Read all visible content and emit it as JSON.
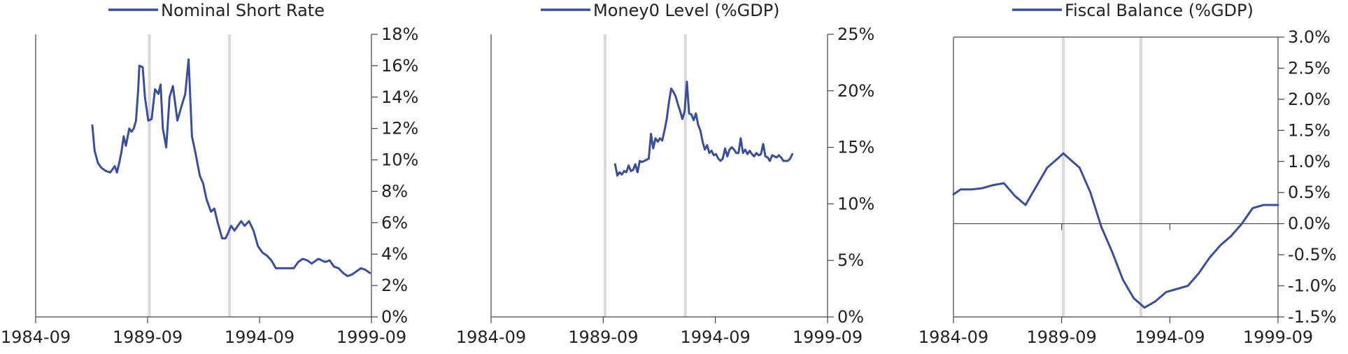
{
  "colors": {
    "line": "#3a4f9c",
    "axis": "#444444",
    "recession": "#d9d9d9"
  },
  "chart_data": [
    {
      "type": "line",
      "title": "",
      "legend": "Nominal Short Rate",
      "legend_placement": "top-center",
      "y_axis_side": "right",
      "xlabel": "",
      "ylabel": "",
      "x_ticks": [
        "1984-09",
        "1989-09",
        "1994-09",
        "1999-09"
      ],
      "x_range": [
        1984.67,
        1999.67
      ],
      "y_ticks": [
        "18%",
        "16%",
        "14%",
        "12%",
        "10%",
        "8%",
        "6%",
        "4%",
        "2%",
        "0%"
      ],
      "ylim": [
        0,
        18
      ],
      "grid": false,
      "recession_shading": [
        1989.75,
        1993.33
      ],
      "series": [
        {
          "x": [
            1987.2,
            1987.3,
            1987.45,
            1987.6,
            1987.8,
            1988.0,
            1988.2,
            1988.3,
            1988.4,
            1988.5,
            1988.6,
            1988.7,
            1988.85,
            1988.95,
            1989.05,
            1989.15,
            1989.25,
            1989.3,
            1989.45,
            1989.55,
            1989.7,
            1989.85,
            1990.0,
            1990.15,
            1990.25,
            1990.35,
            1990.5,
            1990.65,
            1990.8,
            1991.0,
            1991.2,
            1991.35,
            1991.5,
            1991.65,
            1991.8,
            1992.0,
            1992.15,
            1992.3,
            1992.5,
            1992.65,
            1992.8,
            1993.0,
            1993.15,
            1993.25,
            1993.4,
            1993.55,
            1993.7,
            1993.85,
            1994.0,
            1994.2,
            1994.4,
            1994.6,
            1994.8,
            1995.0,
            1995.2,
            1995.4,
            1995.6,
            1995.8,
            1996.0,
            1996.2,
            1996.4,
            1996.6,
            1996.8,
            1997.0,
            1997.3,
            1997.6,
            1997.8,
            1998.0,
            1998.2,
            1998.4,
            1998.6,
            1998.8,
            1999.0,
            1999.2,
            1999.4,
            1999.6
          ],
          "y": [
            12.2,
            10.6,
            9.8,
            9.5,
            9.3,
            9.2,
            9.6,
            9.2,
            9.8,
            10.5,
            11.5,
            10.9,
            12.0,
            11.8,
            12.0,
            12.5,
            14.5,
            16.0,
            15.9,
            14.0,
            12.5,
            12.6,
            14.5,
            14.2,
            14.8,
            12.0,
            10.8,
            14.0,
            14.7,
            12.5,
            13.5,
            14.2,
            16.4,
            11.5,
            10.5,
            9.0,
            8.5,
            7.5,
            6.7,
            6.9,
            6.0,
            5.0,
            5.0,
            5.3,
            5.8,
            5.5,
            5.8,
            6.1,
            5.8,
            6.1,
            5.5,
            4.5,
            4.1,
            3.9,
            3.6,
            3.1,
            3.1,
            3.1,
            3.1,
            3.1,
            3.5,
            3.7,
            3.6,
            3.4,
            3.7,
            3.5,
            3.6,
            3.2,
            3.1,
            2.8,
            2.6,
            2.7,
            2.9,
            3.1,
            3.0,
            2.8
          ]
        }
      ]
    },
    {
      "type": "line",
      "title": "",
      "legend": "Money0 Level (%GDP)",
      "legend_placement": "top-center",
      "y_axis_side": "right",
      "xlabel": "",
      "ylabel": "",
      "x_ticks": [
        "1984-09",
        "1989-09",
        "1994-09",
        "1999-09"
      ],
      "x_range": [
        1984.67,
        1999.67
      ],
      "y_ticks": [
        "25%",
        "20%",
        "15%",
        "10%",
        "5%",
        "0%"
      ],
      "ylim": [
        0,
        25
      ],
      "grid": false,
      "recession_shading": [
        1989.75,
        1993.33
      ],
      "series": [
        {
          "x": [
            1990.2,
            1990.3,
            1990.4,
            1990.5,
            1990.6,
            1990.7,
            1990.8,
            1990.9,
            1991.0,
            1991.1,
            1991.2,
            1991.3,
            1991.4,
            1991.5,
            1991.6,
            1991.7,
            1991.8,
            1991.9,
            1992.0,
            1992.1,
            1992.2,
            1992.3,
            1992.4,
            1992.5,
            1992.6,
            1992.7,
            1992.8,
            1992.9,
            1993.0,
            1993.1,
            1993.2,
            1993.3,
            1993.4,
            1993.5,
            1993.6,
            1993.7,
            1993.8,
            1993.9,
            1994.0,
            1994.1,
            1994.2,
            1994.3,
            1994.4,
            1994.5,
            1994.6,
            1994.7,
            1994.8,
            1994.9,
            1995.0,
            1995.1,
            1995.2,
            1995.3,
            1995.4,
            1995.5,
            1995.6,
            1995.7,
            1995.8,
            1995.9,
            1996.0,
            1996.1,
            1996.2,
            1996.3,
            1996.4,
            1996.5,
            1996.6,
            1996.7,
            1996.8,
            1996.9,
            1997.0,
            1997.1,
            1997.2,
            1997.3,
            1997.4,
            1997.5,
            1997.6,
            1997.7,
            1997.8,
            1997.9,
            1998.0,
            1998.1
          ],
          "y": [
            13.5,
            12.5,
            12.8,
            12.6,
            12.9,
            12.8,
            13.4,
            12.9,
            13.0,
            13.5,
            12.8,
            13.8,
            13.7,
            13.8,
            13.9,
            14.0,
            16.2,
            14.9,
            15.8,
            15.5,
            15.8,
            15.6,
            16.5,
            17.5,
            19.0,
            20.2,
            19.9,
            19.5,
            18.8,
            18.2,
            17.5,
            18.2,
            20.8,
            18.0,
            17.9,
            17.4,
            18.0,
            17.0,
            16.5,
            15.5,
            14.8,
            15.2,
            14.5,
            14.7,
            14.3,
            14.4,
            14.0,
            13.8,
            14.0,
            14.9,
            14.2,
            14.8,
            15.0,
            14.8,
            14.5,
            14.5,
            15.8,
            14.5,
            14.8,
            14.4,
            14.7,
            14.4,
            14.2,
            14.5,
            14.3,
            14.4,
            15.3,
            14.2,
            14.1,
            13.8,
            14.3,
            14.2,
            14.1,
            14.3,
            14.1,
            13.8,
            13.8,
            13.8,
            14.0,
            14.4
          ]
        }
      ]
    },
    {
      "type": "line",
      "title": "",
      "legend": "Fiscal Balance (%GDP)",
      "legend_placement": "top-center",
      "y_axis_side": "right",
      "xlabel": "",
      "ylabel": "",
      "x_ticks": [
        "1984-09",
        "1989-09",
        "1994-09",
        "1999-09"
      ],
      "x_range": [
        1984.67,
        1999.67
      ],
      "y_ticks": [
        "3.0%",
        "2.5%",
        "2.0%",
        "1.5%",
        "1.0%",
        "0.5%",
        "0.0%",
        "-0.5%",
        "-1.0%",
        "-1.5%"
      ],
      "ylim": [
        -1.5,
        3.0
      ],
      "grid": false,
      "zero_line": true,
      "recession_shading": [
        1989.75,
        1993.33
      ],
      "series": [
        {
          "x": [
            1984.67,
            1985.0,
            1985.5,
            1986.0,
            1986.5,
            1987.0,
            1987.5,
            1988.0,
            1988.5,
            1989.0,
            1989.5,
            1989.75,
            1990.0,
            1990.5,
            1991.0,
            1991.5,
            1992.0,
            1992.5,
            1993.0,
            1993.5,
            1994.0,
            1994.5,
            1995.0,
            1995.5,
            1996.0,
            1996.5,
            1997.0,
            1997.5,
            1998.0,
            1998.5,
            1999.0,
            1999.67
          ],
          "y": [
            0.47,
            0.55,
            0.55,
            0.57,
            0.62,
            0.65,
            0.45,
            0.3,
            0.6,
            0.9,
            1.05,
            1.13,
            1.05,
            0.9,
            0.5,
            -0.05,
            -0.45,
            -0.9,
            -1.2,
            -1.35,
            -1.25,
            -1.1,
            -1.05,
            -1.0,
            -0.8,
            -0.55,
            -0.35,
            -0.2,
            0.0,
            0.25,
            0.3,
            0.3
          ]
        }
      ]
    }
  ]
}
